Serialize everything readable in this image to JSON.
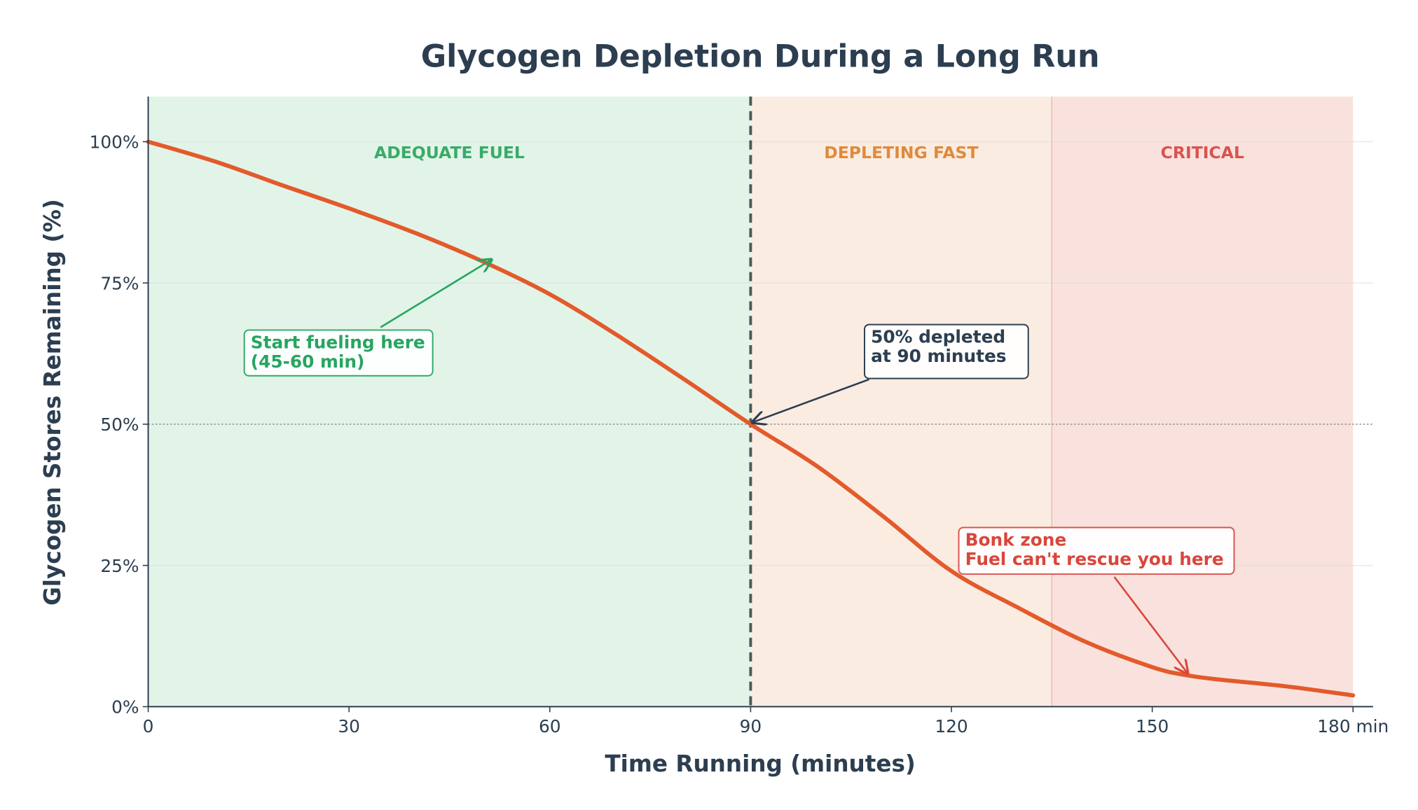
{
  "chart_data": {
    "type": "line",
    "title": "Glycogen Depletion During a Long Run",
    "xlabel": "Time Running (minutes)",
    "ylabel": "Glycogen Stores Remaining (%)",
    "xlim": [
      0,
      183
    ],
    "ylim": [
      0,
      108
    ],
    "x_ticks": [
      0,
      30,
      60,
      90,
      120,
      150,
      180
    ],
    "x_tick_labels": [
      "0",
      "30",
      "60",
      "90",
      "120",
      "150",
      "180 min"
    ],
    "y_ticks": [
      0,
      25,
      50,
      75,
      100
    ],
    "y_tick_labels": [
      "0%",
      "25%",
      "50%",
      "75%",
      "100%"
    ],
    "grid": true,
    "series": [
      {
        "color": "#e35a2b",
        "x": [
          0,
          10,
          20,
          30,
          40,
          50,
          60,
          70,
          80,
          90,
          100,
          110,
          120,
          130,
          140,
          150,
          155,
          160,
          170,
          180
        ],
        "y": [
          100,
          96.5,
          92.3,
          88.2,
          83.8,
          78.8,
          73,
          65.8,
          58,
          50,
          42.5,
          33.5,
          24,
          17.5,
          11.5,
          7,
          5.6,
          4.8,
          3.6,
          2
        ]
      }
    ],
    "zones": [
      {
        "label": "ADEQUATE FUEL",
        "from": 0,
        "to": 90,
        "fill": "#e2f4e8",
        "text_color": "#3aaa6a"
      },
      {
        "label": "DEPLETING FAST",
        "from": 90,
        "to": 135,
        "fill": "#fbece2",
        "text_color": "#e08a3c"
      },
      {
        "label": "CRITICAL",
        "from": 135,
        "to": 180,
        "fill": "#f9e2dd",
        "text_color": "#d9534f"
      }
    ],
    "reference_lines": [
      {
        "axis": "x",
        "value": 90,
        "style": "dashed",
        "color": "#4a5a5a"
      },
      {
        "axis": "y",
        "value": 50,
        "style": "dotted",
        "color": "#888888"
      }
    ],
    "annotations": [
      {
        "lines": [
          "Start fueling here",
          "(45-60 min)"
        ],
        "point": [
          51,
          78.8
        ],
        "color": "#27a560"
      },
      {
        "lines": [
          "50% depleted",
          "at 90 minutes"
        ],
        "point": [
          90,
          50
        ],
        "color": "#2c3e50"
      },
      {
        "lines": [
          "Bonk zone",
          "Fuel can't rescue you here"
        ],
        "point": [
          155,
          5.6
        ],
        "color": "#d9463c"
      }
    ]
  }
}
